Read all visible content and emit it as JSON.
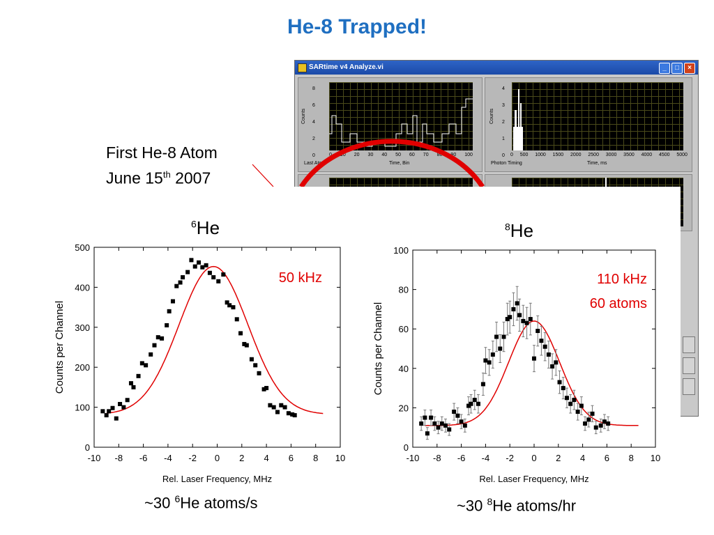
{
  "slide": {
    "title": "He-8 Trapped!",
    "note_line1": "First He-8 Atom",
    "note_line2_pre": "June 15",
    "note_line2_sup": "th",
    "note_line2_post": " 2007",
    "annotation_color": "#e00000"
  },
  "window": {
    "title": "SARtime v4 Analyze.vi",
    "left_scope_ylabel": "Counts",
    "left_scope_xlabel": "Time, Bin",
    "left_scope_caption": "Last Atom",
    "left_scope_yticks": [
      "8",
      "6",
      "4",
      "2",
      "0"
    ],
    "left_scope_xticks": [
      "0",
      "10",
      "20",
      "30",
      "40",
      "50",
      "60",
      "70",
      "80",
      "90",
      "100"
    ],
    "right_scope_ylabel": "Counts",
    "right_scope_xlabel": "Time, ms",
    "right_scope_caption": "Photon Timing",
    "right_scope_yticks": [
      "4",
      "3",
      "2",
      "1",
      "0"
    ],
    "right_scope_xticks": [
      "0",
      "500",
      "1000",
      "1500",
      "2000",
      "2500",
      "3000",
      "3500",
      "4000",
      "4500",
      "5000"
    ]
  },
  "chart_data": [
    {
      "type": "scatter",
      "heading_sup": "6",
      "heading_main": "He",
      "xlabel": "Rel. Laser Frequency, MHz",
      "ylabel": "Counts per Channel",
      "xlim": [
        -10,
        10
      ],
      "ylim": [
        0,
        500
      ],
      "xticks": [
        -10,
        -8,
        -6,
        -4,
        -2,
        0,
        2,
        4,
        6,
        8,
        10
      ],
      "yticks": [
        0,
        100,
        200,
        300,
        400,
        500
      ],
      "annotation": [
        "50 kHz"
      ],
      "caption_pre": "~30 ",
      "caption_sup": "6",
      "caption_post": "He atoms/s",
      "error_bars": false,
      "points": [
        [
          -9.3,
          90
        ],
        [
          -9.0,
          80
        ],
        [
          -8.8,
          90
        ],
        [
          -8.5,
          98
        ],
        [
          -8.2,
          72
        ],
        [
          -7.9,
          108
        ],
        [
          -7.6,
          100
        ],
        [
          -7.3,
          118
        ],
        [
          -7.0,
          160
        ],
        [
          -6.8,
          150
        ],
        [
          -6.4,
          178
        ],
        [
          -6.1,
          210
        ],
        [
          -5.8,
          205
        ],
        [
          -5.4,
          232
        ],
        [
          -5.1,
          255
        ],
        [
          -4.8,
          275
        ],
        [
          -4.5,
          272
        ],
        [
          -4.1,
          305
        ],
        [
          -3.9,
          340
        ],
        [
          -3.6,
          365
        ],
        [
          -3.3,
          403
        ],
        [
          -3.0,
          412
        ],
        [
          -2.8,
          425
        ],
        [
          -2.4,
          438
        ],
        [
          -2.1,
          468
        ],
        [
          -1.8,
          452
        ],
        [
          -1.5,
          462
        ],
        [
          -1.2,
          450
        ],
        [
          -0.9,
          455
        ],
        [
          -0.6,
          436
        ],
        [
          -0.3,
          425
        ],
        [
          0.1,
          415
        ],
        [
          0.5,
          432
        ],
        [
          0.8,
          362
        ],
        [
          1.0,
          355
        ],
        [
          1.3,
          350
        ],
        [
          1.6,
          320
        ],
        [
          1.9,
          285
        ],
        [
          2.2,
          258
        ],
        [
          2.4,
          255
        ],
        [
          2.8,
          220
        ],
        [
          3.1,
          205
        ],
        [
          3.4,
          185
        ],
        [
          3.8,
          145
        ],
        [
          4.0,
          148
        ],
        [
          4.3,
          105
        ],
        [
          4.6,
          100
        ],
        [
          4.9,
          88
        ],
        [
          5.2,
          105
        ],
        [
          5.5,
          100
        ],
        [
          5.8,
          85
        ],
        [
          6.1,
          82
        ],
        [
          6.3,
          80
        ]
      ],
      "fit": {
        "center": -0.3,
        "amplitude": 370,
        "sigma": 2.8,
        "offset": 82
      }
    },
    {
      "type": "scatter",
      "heading_sup": "8",
      "heading_main": "He",
      "xlabel": "Rel. Laser Frequency, MHz",
      "ylabel": "Counts per Channel",
      "xlim": [
        -10,
        10
      ],
      "ylim": [
        0,
        100
      ],
      "xticks": [
        -10,
        -8,
        -6,
        -4,
        -2,
        0,
        2,
        4,
        6,
        8,
        10
      ],
      "yticks": [
        0,
        20,
        40,
        60,
        80,
        100
      ],
      "annotation": [
        "110 kHz",
        "60 atoms"
      ],
      "caption_pre": "~30 ",
      "caption_sup": "8",
      "caption_post": "He atoms/hr",
      "error_bars": true,
      "points": [
        [
          -9.3,
          12
        ],
        [
          -9.0,
          15
        ],
        [
          -8.8,
          7
        ],
        [
          -8.5,
          15
        ],
        [
          -8.2,
          12
        ],
        [
          -7.9,
          10
        ],
        [
          -7.6,
          12
        ],
        [
          -7.3,
          11
        ],
        [
          -7.0,
          9
        ],
        [
          -6.6,
          18
        ],
        [
          -6.3,
          16
        ],
        [
          -6.0,
          13
        ],
        [
          -5.7,
          11
        ],
        [
          -5.4,
          21
        ],
        [
          -5.2,
          22
        ],
        [
          -4.9,
          24
        ],
        [
          -4.6,
          22
        ],
        [
          -4.2,
          32
        ],
        [
          -4.0,
          44
        ],
        [
          -3.7,
          43
        ],
        [
          -3.4,
          47
        ],
        [
          -3.1,
          56
        ],
        [
          -2.8,
          50
        ],
        [
          -2.5,
          56
        ],
        [
          -2.2,
          65
        ],
        [
          -2.0,
          66
        ],
        [
          -1.7,
          70
        ],
        [
          -1.4,
          73
        ],
        [
          -1.2,
          67
        ],
        [
          -0.9,
          64
        ],
        [
          -0.6,
          63
        ],
        [
          -0.3,
          65
        ],
        [
          0.0,
          45
        ],
        [
          0.3,
          59
        ],
        [
          0.6,
          54
        ],
        [
          0.9,
          51
        ],
        [
          1.2,
          47
        ],
        [
          1.5,
          41
        ],
        [
          1.8,
          43
        ],
        [
          2.1,
          33
        ],
        [
          2.4,
          30
        ],
        [
          2.7,
          25
        ],
        [
          3.0,
          22
        ],
        [
          3.3,
          24
        ],
        [
          3.6,
          18
        ],
        [
          3.9,
          21
        ],
        [
          4.2,
          12
        ],
        [
          4.5,
          14
        ],
        [
          4.8,
          17
        ],
        [
          5.1,
          10
        ],
        [
          5.5,
          11
        ],
        [
          5.8,
          13
        ],
        [
          6.1,
          12
        ]
      ],
      "fit": {
        "center": 0.0,
        "amplitude": 53,
        "sigma": 2.1,
        "offset": 11
      }
    }
  ]
}
